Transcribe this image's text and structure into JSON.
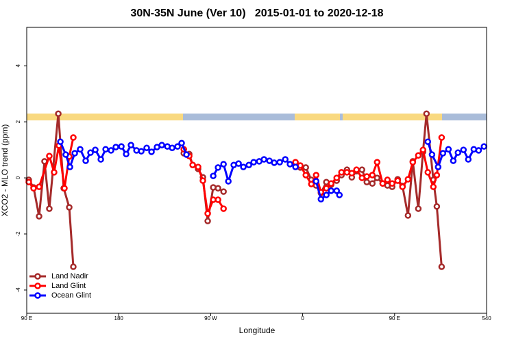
{
  "chart_data": {
    "type": "line",
    "title": "30N-35N June (Ver 10)   2015-01-01 to 2020-12-18",
    "xlabel": "Longitude",
    "ylabel": "XCO2 - MLO trend (ppm)",
    "xlim": [
      90,
      540
    ],
    "xticks": [
      {
        "value": 90,
        "label": "90 E"
      },
      180,
      {
        "value": 270,
        "label": "90 W"
      },
      {
        "value": 360,
        "label": "0"
      },
      {
        "value": 450,
        "label": "90 E"
      },
      540
    ],
    "ylim": [
      -4.83,
      5.37
    ],
    "yticks": [
      -4,
      -2,
      0,
      2,
      4
    ],
    "grid": false,
    "legend": "bottomleft",
    "series": [
      {
        "name": "Land Nadir",
        "color": "#a52a2a",
        "x": [
          92.0,
          96.7,
          102.1,
          107.4,
          112.1,
          120.9,
          126.2,
          131.6,
          135.6,
          null,
          243.7,
          249.0,
          252.4,
          257.7,
          262.4,
          267.1,
          272.5,
          277.2,
          282.6,
          null,
          353.0,
          357.7,
          363.1,
          368.5,
          373.2,
          377.9,
          383.2,
          387.9,
          393.3,
          398.0,
          403.4,
          408.1,
          412.7,
          418.1,
          422.8,
          428.2,
          432.9,
          438.3,
          443.0,
          447.6,
          453.0,
          457.7,
          463.1,
          467.8,
          473.2,
          477.8,
          481.2,
          487.9,
          491.3,
          496.0
        ],
        "values": [
          -0.07,
          -0.34,
          -1.37,
          0.59,
          -1.1,
          2.29,
          -0.37,
          -1.05,
          -3.17,
          null,
          0.88,
          0.85,
          0.46,
          0.32,
          0.02,
          -1.54,
          -0.34,
          -0.37,
          -0.49,
          null,
          0.51,
          0.37,
          0.37,
          -0.07,
          -0.27,
          -0.54,
          -0.15,
          -0.24,
          -0.1,
          0.1,
          0.29,
          0.02,
          0.24,
          0.29,
          -0.15,
          -0.2,
          0.0,
          -0.2,
          -0.27,
          -0.32,
          -0.05,
          -0.29,
          -1.34,
          0.59,
          -1.1,
          0.93,
          2.29,
          -0.07,
          -1.02,
          -3.17
        ]
      },
      {
        "name": "Land Glint",
        "color": "#ff0000",
        "x": [
          92.0,
          96.7,
          102.1,
          112.1,
          116.8,
          121.5,
          126.9,
          131.6,
          135.6,
          null,
          243.7,
          249.0,
          252.4,
          257.7,
          262.4,
          267.1,
          272.5,
          277.2,
          282.6,
          null,
          353.0,
          357.7,
          363.1,
          368.5,
          373.2,
          377.9,
          383.2,
          387.9,
          393.3,
          398.0,
          403.4,
          408.1,
          412.7,
          418.1,
          422.8,
          428.2,
          432.9,
          438.3,
          443.0,
          447.6,
          453.0,
          457.7,
          463.1,
          467.8,
          473.2,
          477.8,
          482.5,
          487.9,
          491.3,
          496.0
        ],
        "values": [
          -0.15,
          -0.37,
          -0.32,
          0.78,
          0.2,
          1.15,
          -0.37,
          0.76,
          1.44,
          null,
          1.02,
          0.78,
          0.46,
          0.39,
          -0.1,
          -1.27,
          -0.78,
          -0.78,
          -1.1,
          null,
          0.56,
          0.44,
          0.1,
          -0.22,
          0.1,
          -0.51,
          -0.37,
          -0.2,
          0.0,
          0.2,
          0.2,
          0.17,
          0.29,
          0.0,
          0.05,
          0.1,
          0.56,
          -0.2,
          -0.07,
          -0.2,
          -0.1,
          -0.32,
          -0.05,
          0.56,
          0.8,
          1.0,
          0.2,
          -0.32,
          0.1,
          1.44
        ]
      },
      {
        "name": "Ocean Glint",
        "color": "#0000ff",
        "x": [
          122.9,
          128.2,
          132.3,
          137.0,
          142.3,
          147.7,
          152.4,
          157.1,
          162.5,
          167.2,
          172.5,
          177.2,
          182.6,
          187.3,
          192.0,
          197.4,
          202.1,
          207.4,
          212.1,
          217.5,
          222.2,
          227.6,
          232.3,
          237.6,
          241.6,
          246.3,
          null,
          272.5,
          277.2,
          282.6,
          287.3,
          292.6,
          297.3,
          302.0,
          307.4,
          312.1,
          317.5,
          322.2,
          327.5,
          332.2,
          337.6,
          343.0,
          347.6,
          353.0,
          null,
          373.2,
          377.9,
          383.2,
          387.9,
          393.3,
          396.0,
          null,
          482.5,
          486.6,
          492.6,
          497.3,
          502.7,
          507.4,
          512.0,
          517.4,
          522.1,
          527.5,
          532.2,
          537.5
        ],
        "values": [
          1.29,
          0.83,
          0.39,
          0.88,
          1.02,
          0.61,
          0.9,
          1.0,
          0.66,
          1.02,
          0.98,
          1.1,
          1.12,
          0.85,
          1.17,
          0.98,
          0.95,
          1.07,
          0.93,
          1.1,
          1.17,
          1.12,
          1.07,
          1.12,
          1.24,
          0.83,
          null,
          0.07,
          0.37,
          0.49,
          -0.12,
          0.46,
          0.51,
          0.39,
          0.46,
          0.56,
          0.59,
          0.66,
          0.61,
          0.54,
          0.56,
          0.66,
          0.49,
          0.39,
          null,
          -0.12,
          -0.76,
          -0.61,
          -0.46,
          -0.46,
          -0.61,
          null,
          1.29,
          0.83,
          0.39,
          0.88,
          1.02,
          0.61,
          0.9,
          1.0,
          0.66,
          1.02,
          0.98,
          1.12
        ]
      }
    ]
  }
}
